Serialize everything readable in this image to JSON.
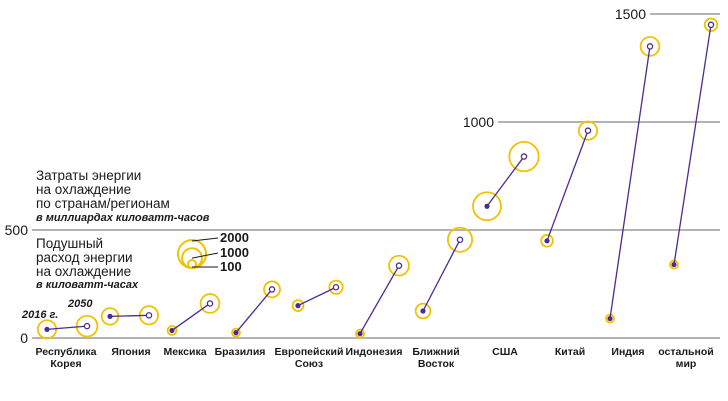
{
  "chart_data": {
    "type": "scatter",
    "title": "Затраты энергии на охлаждение по странам/регионам",
    "subtitle": "в миллиардах киловатт-часов",
    "size_title": "Подушный расход энергии на охлаждение",
    "size_subtitle": "в киловатт-часах",
    "years": [
      "2016 г.",
      "2050"
    ],
    "ylim": [
      0,
      1500
    ],
    "yticks": [
      0,
      500,
      1000,
      1500
    ],
    "size_legend": [
      2000,
      1000,
      100
    ],
    "series": [
      {
        "name": "Республика Корея",
        "label_lines": [
          "Республика",
          "Корея"
        ],
        "v2016": 40,
        "v2050": 55,
        "pc2016": 850,
        "pc2050": 1100
      },
      {
        "name": "Япония",
        "label_lines": [
          "Япония"
        ],
        "v2016": 100,
        "v2050": 105,
        "pc2016": 700,
        "pc2050": 850
      },
      {
        "name": "Мексика",
        "label_lines": [
          "Мексика"
        ],
        "v2016": 35,
        "v2050": 160,
        "pc2016": 200,
        "pc2050": 900
      },
      {
        "name": "Бразилия",
        "label_lines": [
          "Бразилия"
        ],
        "v2016": 25,
        "v2050": 225,
        "pc2016": 100,
        "pc2050": 650
      },
      {
        "name": "Европейский Союз",
        "label_lines": [
          "Европейский",
          "Союз"
        ],
        "v2016": 150,
        "v2050": 235,
        "pc2016": 300,
        "pc2050": 450
      },
      {
        "name": "Индонезия",
        "label_lines": [
          "Индонезия"
        ],
        "v2016": 20,
        "v2050": 335,
        "pc2016": 50,
        "pc2050": 1000
      },
      {
        "name": "Ближний Восток",
        "label_lines": [
          "Ближний",
          "Восток"
        ],
        "v2016": 125,
        "v2050": 455,
        "pc2016": 550,
        "pc2050": 1500
      },
      {
        "name": "США",
        "label_lines": [
          "США"
        ],
        "v2016": 610,
        "v2050": 840,
        "pc2016": 2000,
        "pc2050": 2200
      },
      {
        "name": "Китай",
        "label_lines": [
          "Китай"
        ],
        "v2016": 450,
        "v2050": 960,
        "pc2016": 350,
        "pc2050": 850
      },
      {
        "name": "Индия",
        "label_lines": [
          "Индия"
        ],
        "v2016": 90,
        "v2050": 1350,
        "pc2016": 60,
        "pc2050": 900
      },
      {
        "name": "остальной мир",
        "label_lines": [
          "остальной",
          "мир"
        ],
        "v2016": 340,
        "v2050": 1450,
        "pc2016": 40,
        "pc2050": 400
      }
    ],
    "colors": {
      "point": "#4b2c8c",
      "ring": "#f2c200",
      "line": "#4b2c8c",
      "grid": "#b3b3b3"
    }
  }
}
